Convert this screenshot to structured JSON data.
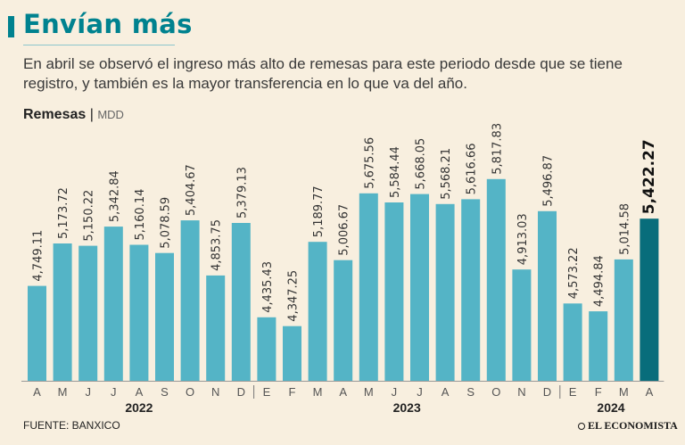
{
  "title": "Envían más",
  "subtitle": "En abril se observó el ingreso más alto de remesas para este periodo desde que se tiene registro, y también es la mayor transferencia en lo que va del año.",
  "measure_label": "Remesas",
  "measure_unit": "MDD",
  "source": "FUENTE: BANXICO",
  "brand": "EL ECONOMISTA",
  "colors": {
    "bar": "#54b4c6",
    "highlight_bar": "#086d7b",
    "accent": "#00828f",
    "background": "#f8efdf"
  },
  "chart_data": {
    "type": "bar",
    "title": "Remesas",
    "ylabel": "MDD",
    "xlabel": "",
    "ylim": [
      3800,
      5950
    ],
    "grid": false,
    "categories": [
      "A",
      "M",
      "J",
      "J",
      "A",
      "S",
      "O",
      "N",
      "D",
      "E",
      "F",
      "M",
      "A",
      "M",
      "J",
      "J",
      "A",
      "S",
      "O",
      "N",
      "D",
      "E",
      "F",
      "M",
      "A"
    ],
    "value_labels": [
      "4,749.11",
      "5,173.72",
      "5,150.22",
      "5,342.84",
      "5,160.14",
      "5,078.59",
      "5,404.67",
      "4,853.75",
      "5,379.13",
      "4,435.43",
      "4,347.25",
      "5,189.77",
      "5,006.67",
      "5,675.56",
      "5,584.44",
      "5,668.05",
      "5,568.21",
      "5,616.66",
      "5,817.83",
      "4,913.03",
      "5,496.87",
      "4,573.22",
      "4,494.84",
      "5,014.58",
      "5,422.27"
    ],
    "values": [
      4749.11,
      5173.72,
      5150.22,
      5342.84,
      5160.14,
      5078.59,
      5404.67,
      4853.75,
      5379.13,
      4435.43,
      4347.25,
      5189.77,
      5006.67,
      5675.56,
      5584.44,
      5668.05,
      5568.21,
      5616.66,
      5817.83,
      4913.03,
      5496.87,
      4573.22,
      4494.84,
      5014.58,
      5422.27
    ],
    "highlight_index": 24,
    "year_groups": [
      {
        "label": "2022",
        "start": 0,
        "end": 8
      },
      {
        "label": "2023",
        "start": 9,
        "end": 20
      },
      {
        "label": "2024",
        "start": 21,
        "end": 24
      }
    ]
  }
}
